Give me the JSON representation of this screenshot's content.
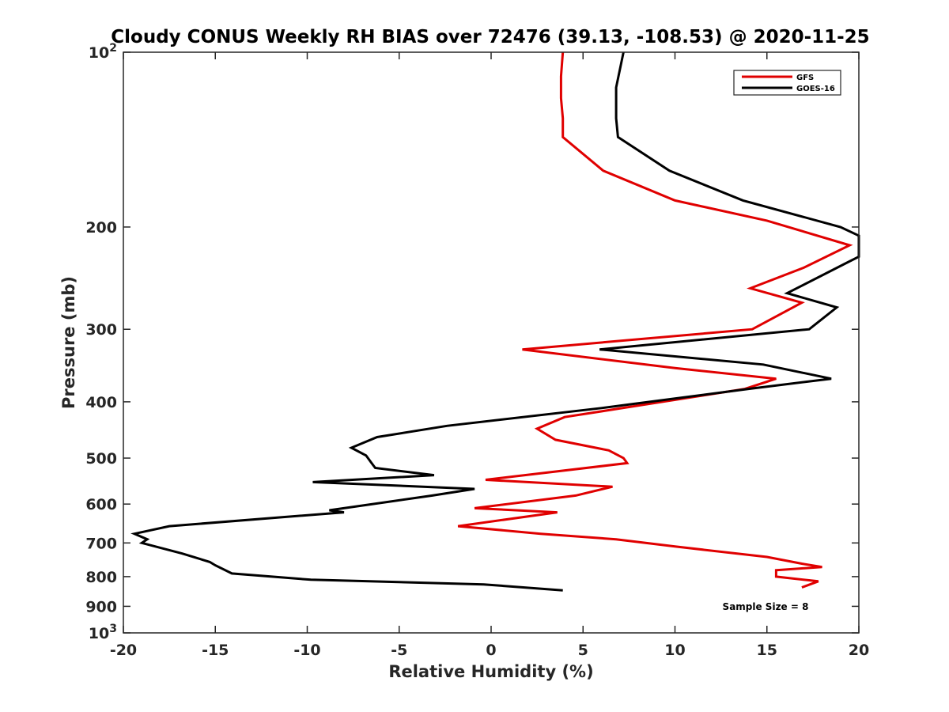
{
  "chart_data": {
    "type": "line",
    "title": "Cloudy CONUS Weekly RH BIAS over 72476 (39.13, -108.53) @ 2020-11-25",
    "xlabel": "Relative Humidity (%)",
    "ylabel": "Pressure (mb)",
    "xlim": [
      -20,
      20
    ],
    "ylim": [
      100,
      1000
    ],
    "yscale": "log",
    "y_reversed": true,
    "grid": false,
    "legend_position": "top-right",
    "x_ticks": [
      "-20",
      "-15",
      "-10",
      "-5",
      "0",
      "5",
      "10",
      "15",
      "20"
    ],
    "y_ticks": [
      {
        "value": 100,
        "label": "10",
        "sup": "2"
      },
      {
        "value": 200,
        "label": "200",
        "sup": ""
      },
      {
        "value": 300,
        "label": "300",
        "sup": ""
      },
      {
        "value": 400,
        "label": "400",
        "sup": ""
      },
      {
        "value": 500,
        "label": "500",
        "sup": ""
      },
      {
        "value": 600,
        "label": "600",
        "sup": ""
      },
      {
        "value": 700,
        "label": "700",
        "sup": ""
      },
      {
        "value": 800,
        "label": "800",
        "sup": ""
      },
      {
        "value": 900,
        "label": "900",
        "sup": ""
      },
      {
        "value": 1000,
        "label": "10",
        "sup": "3"
      }
    ],
    "annotation": "Sample Size = 8",
    "series": [
      {
        "name": "GFS",
        "color": "#e00000",
        "points": [
          [
            3.9,
            100
          ],
          [
            3.8,
            110
          ],
          [
            3.8,
            120
          ],
          [
            3.9,
            130
          ],
          [
            3.9,
            140
          ],
          [
            6.1,
            160
          ],
          [
            10.0,
            180
          ],
          [
            15.0,
            195
          ],
          [
            19.5,
            215
          ],
          [
            17.0,
            235
          ],
          [
            14.1,
            255
          ],
          [
            16.9,
            270
          ],
          [
            14.2,
            300
          ],
          [
            1.7,
            325
          ],
          [
            10.0,
            350
          ],
          [
            15.5,
            365
          ],
          [
            13.8,
            380
          ],
          [
            4.0,
            425
          ],
          [
            2.5,
            445
          ],
          [
            3.5,
            465
          ],
          [
            6.4,
            485
          ],
          [
            7.2,
            500
          ],
          [
            7.4,
            510
          ],
          [
            -0.3,
            545
          ],
          [
            6.6,
            560
          ],
          [
            4.6,
            580
          ],
          [
            -0.9,
            610
          ],
          [
            3.6,
            620
          ],
          [
            -1.8,
            655
          ],
          [
            2.7,
            675
          ],
          [
            6.8,
            690
          ],
          [
            10.0,
            710
          ],
          [
            15.0,
            740
          ],
          [
            16.9,
            760
          ],
          [
            18.0,
            770
          ],
          [
            15.5,
            780
          ],
          [
            15.5,
            800
          ],
          [
            17.8,
            815
          ],
          [
            16.9,
            835
          ]
        ]
      },
      {
        "name": "GOES-16",
        "color": "#000000",
        "points": [
          [
            7.2,
            100
          ],
          [
            6.8,
            115
          ],
          [
            6.8,
            130
          ],
          [
            6.9,
            140
          ],
          [
            9.7,
            160
          ],
          [
            13.7,
            180
          ],
          [
            19.0,
            200
          ],
          [
            20.0,
            207
          ],
          [
            20.0,
            225
          ],
          [
            19.4,
            230
          ],
          [
            16.1,
            260
          ],
          [
            18.8,
            275
          ],
          [
            17.3,
            300
          ],
          [
            5.9,
            325
          ],
          [
            14.8,
            345
          ],
          [
            18.5,
            365
          ],
          [
            14.0,
            380
          ],
          [
            6.0,
            410
          ],
          [
            -2.4,
            440
          ],
          [
            -6.2,
            460
          ],
          [
            -7.6,
            480
          ],
          [
            -6.8,
            495
          ],
          [
            -6.5,
            510
          ],
          [
            -6.3,
            520
          ],
          [
            -3.1,
            535
          ],
          [
            -9.7,
            550
          ],
          [
            -0.9,
            565
          ],
          [
            -3.2,
            580
          ],
          [
            -8.8,
            615
          ],
          [
            -8.0,
            620
          ],
          [
            -17.5,
            655
          ],
          [
            -19.4,
            675
          ],
          [
            -18.7,
            690
          ],
          [
            -19.0,
            700
          ],
          [
            -16.8,
            730
          ],
          [
            -15.3,
            755
          ],
          [
            -15.0,
            765
          ],
          [
            -14.1,
            790
          ],
          [
            -9.8,
            810
          ],
          [
            -0.4,
            825
          ],
          [
            3.9,
            845
          ]
        ]
      }
    ]
  }
}
